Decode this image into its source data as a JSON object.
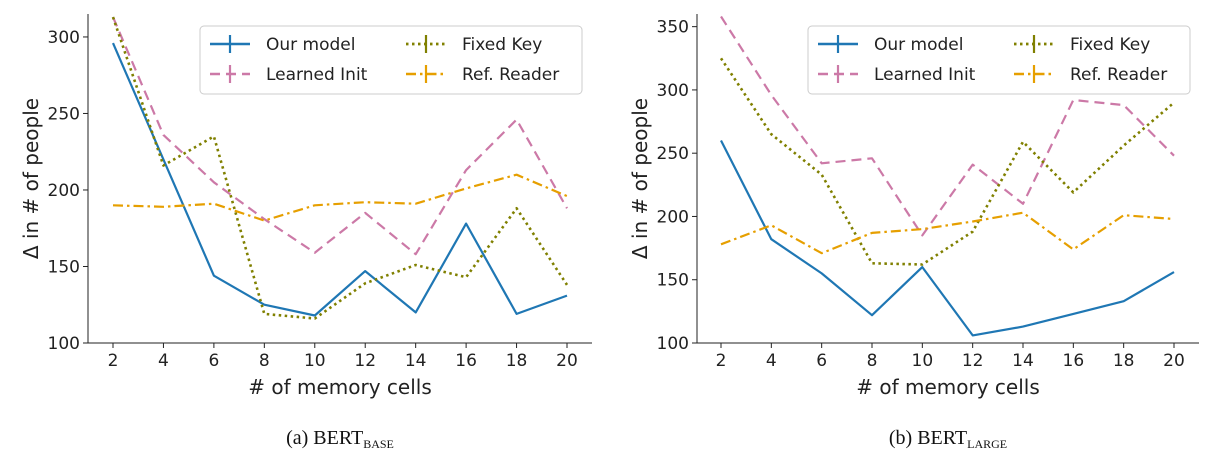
{
  "chart_data": [
    {
      "type": "line",
      "caption": {
        "prefix": "(a) BERT",
        "subscript": "BASE"
      },
      "xlabel": "# of memory cells",
      "ylabel": "Δ in # of people",
      "x": [
        2,
        4,
        6,
        8,
        10,
        12,
        14,
        16,
        18,
        20
      ],
      "xticks": [
        "2",
        "4",
        "6",
        "8",
        "10",
        "12",
        "14",
        "16",
        "18",
        "20"
      ],
      "yticks": [
        100,
        150,
        200,
        250,
        300
      ],
      "ylim": [
        100,
        315
      ],
      "grid": false,
      "legend_position": "top-right",
      "series": [
        {
          "name": "Our model",
          "style": "solid",
          "color": "#1f77b4",
          "values": [
            296,
            220,
            144,
            125,
            118,
            147,
            120,
            178,
            119,
            131
          ]
        },
        {
          "name": "Learned Init",
          "style": "dashed",
          "color": "#cc79a7",
          "values": [
            313,
            236,
            205,
            181,
            159,
            185,
            158,
            213,
            246,
            188
          ]
        },
        {
          "name": "Fixed Key",
          "style": "dotted",
          "color": "#808000",
          "values": [
            313,
            216,
            235,
            119,
            116,
            139,
            151,
            143,
            188,
            138
          ]
        },
        {
          "name": "Ref. Reader",
          "style": "dashdot",
          "color": "#e69f00",
          "values": [
            190,
            189,
            191,
            180,
            190,
            192,
            191,
            201,
            210,
            196
          ]
        }
      ]
    },
    {
      "type": "line",
      "caption": {
        "prefix": "(b) BERT",
        "subscript": "LARGE"
      },
      "xlabel": "# of memory cells",
      "ylabel": "Δ in # of people",
      "x": [
        2,
        4,
        6,
        8,
        10,
        12,
        14,
        16,
        18,
        20
      ],
      "xticks": [
        "2",
        "4",
        "6",
        "8",
        "10",
        "12",
        "14",
        "16",
        "18",
        "20"
      ],
      "yticks": [
        100,
        150,
        200,
        250,
        300,
        350
      ],
      "ylim": [
        100,
        360
      ],
      "grid": false,
      "legend_position": "top-right",
      "series": [
        {
          "name": "Our model",
          "style": "solid",
          "color": "#1f77b4",
          "values": [
            260,
            182,
            155,
            122,
            160,
            106,
            113,
            123,
            133,
            156
          ]
        },
        {
          "name": "Learned Init",
          "style": "dashed",
          "color": "#cc79a7",
          "values": [
            358,
            296,
            242,
            246,
            185,
            241,
            210,
            292,
            288,
            248
          ]
        },
        {
          "name": "Fixed Key",
          "style": "dotted",
          "color": "#808000",
          "values": [
            325,
            265,
            233,
            163,
            162,
            188,
            259,
            219,
            256,
            290
          ]
        },
        {
          "name": "Ref. Reader",
          "style": "dashdot",
          "color": "#e69f00",
          "values": [
            178,
            193,
            171,
            187,
            190,
            196,
            203,
            174,
            201,
            198
          ]
        }
      ]
    }
  ]
}
